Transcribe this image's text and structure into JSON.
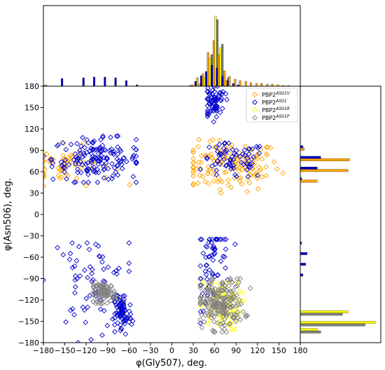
{
  "colors": {
    "orange": "#FFA500",
    "blue": "#0000CC",
    "yellow": "#FFFF00",
    "gray": "#808080",
    "edge": "#000000"
  },
  "chart_data": {
    "type": "scatter",
    "title": "",
    "xlabel": "φ(Gly507), deg.",
    "ylabel": "φ(Asn506), deg.",
    "xlim": [
      -180,
      180
    ],
    "ylim": [
      -180,
      180
    ],
    "grid": false,
    "legend_position": "top-right",
    "xticks": [
      -180,
      -150,
      -120,
      -90,
      -60,
      -30,
      0,
      30,
      60,
      90,
      120,
      150,
      180
    ],
    "yticks": [
      -180,
      -150,
      -120,
      -90,
      -60,
      -30,
      0,
      30,
      60,
      90,
      120,
      150,
      180
    ],
    "xtick_labels": [
      "−180",
      "−150",
      "−120",
      "−90",
      "−60",
      "−30",
      "0",
      "30",
      "60",
      "90",
      "120",
      "150",
      "180"
    ],
    "ytick_labels": [
      "−180",
      "−150",
      "−120",
      "−90",
      "−60",
      "−30",
      "0",
      "30",
      "60",
      "90",
      "120",
      "150",
      "180"
    ],
    "marker": "diamond (open)",
    "series": [
      {
        "name": "PBP2",
        "superscript": "A501V",
        "color": "#FFA500",
        "clusters": [
          {
            "x": [
              30,
              180
            ],
            "y": [
              30,
              105
            ],
            "center": [
              80,
              68
            ]
          },
          {
            "x": [
              -180,
              -40
            ],
            "y": [
              40,
              100
            ],
            "center": [
              -150,
              70
            ]
          }
        ]
      },
      {
        "name": "PBP2",
        "superscript": "A501",
        "color": "#0000CC",
        "clusters": [
          {
            "x": [
              -180,
              -50
            ],
            "y": [
              45,
              110
            ],
            "center": [
              -105,
              78
            ]
          },
          {
            "x": [
              40,
              140
            ],
            "y": [
              45,
              100
            ],
            "center": [
              85,
              75
            ]
          },
          {
            "x": [
              40,
              90
            ],
            "y": [
              -180,
              -35
            ],
            "center": [
              60,
              -65
            ]
          },
          {
            "x": [
              -180,
              -60
            ],
            "y": [
              -180,
              -40
            ],
            "center": [
              -115,
              -95
            ]
          },
          {
            "x": [
              -80,
              -50
            ],
            "y": [
              -175,
              -110
            ],
            "center": [
              -70,
              -140
            ]
          },
          {
            "x": [
              50,
              80
            ],
            "y": [
              130,
              180
            ],
            "center": [
              60,
              160
            ]
          }
        ]
      },
      {
        "name": "PBP2",
        "superscript": "A501R",
        "color": "#FFFF00",
        "clusters": [
          {
            "x": [
              40,
              100
            ],
            "y": [
              -170,
              -95
            ],
            "center": [
              68,
              -128
            ]
          }
        ]
      },
      {
        "name": "PBP2",
        "superscript": "A501P",
        "color": "#808080",
        "clusters": [
          {
            "x": [
              40,
              110
            ],
            "y": [
              -165,
              -90
            ],
            "center": [
              68,
              -125
            ]
          },
          {
            "x": [
              -110,
              -75
            ],
            "y": [
              -125,
              -95
            ],
            "center": [
              -95,
              -110
            ]
          }
        ]
      }
    ],
    "top_histogram": {
      "bin_centers": [
        -175,
        -150,
        -135,
        -120,
        -105,
        -90,
        -75,
        -60,
        -45,
        30,
        37,
        45,
        52,
        60,
        67,
        75,
        82,
        90,
        97,
        105,
        112,
        120,
        127,
        135,
        142,
        150,
        157,
        165,
        172
      ],
      "blue": [
        1,
        11,
        0,
        12,
        13,
        13,
        12,
        8,
        2,
        1,
        7,
        15,
        21,
        30,
        26,
        14,
        8,
        4,
        2,
        0,
        0,
        0,
        0,
        0,
        0,
        0,
        0,
        0,
        0
      ],
      "orange": [
        2,
        0,
        0,
        0,
        0,
        0,
        0,
        0,
        0,
        2,
        12,
        18,
        48,
        65,
        45,
        22,
        14,
        10,
        8,
        7,
        5,
        4,
        4,
        3,
        3,
        2,
        1,
        1,
        0
      ],
      "yellow": [
        0,
        0,
        0,
        0,
        0,
        0,
        0,
        0,
        0,
        0,
        3,
        12,
        40,
        100,
        55,
        8,
        0,
        0,
        0,
        0,
        0,
        0,
        0,
        0,
        0,
        0,
        0,
        0,
        0
      ],
      "gray": [
        0,
        0,
        0,
        0,
        0,
        0,
        0,
        0,
        0,
        0,
        4,
        14,
        45,
        95,
        60,
        12,
        0,
        0,
        0,
        0,
        0,
        0,
        0,
        0,
        0,
        0,
        0,
        0,
        0
      ]
    },
    "right_histogram": {
      "bin_centers": [
        90,
        75,
        60,
        45,
        -45,
        -60,
        -75,
        -90,
        -105,
        -120,
        -135,
        -150,
        -160
      ],
      "blue": [
        4,
        30,
        25,
        2,
        2,
        10,
        8,
        4,
        0,
        0,
        0,
        0,
        0
      ],
      "orange": [
        6,
        72,
        70,
        25,
        0,
        0,
        0,
        0,
        0,
        0,
        0,
        0,
        0
      ],
      "yellow": [
        0,
        0,
        0,
        0,
        0,
        0,
        0,
        0,
        0,
        0,
        70,
        110,
        25
      ],
      "gray": [
        0,
        0,
        0,
        0,
        0,
        0,
        0,
        0,
        0,
        0,
        62,
        95,
        30
      ]
    }
  }
}
